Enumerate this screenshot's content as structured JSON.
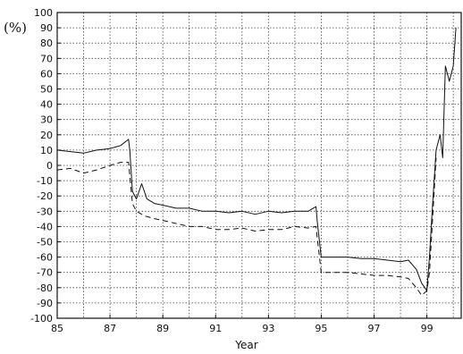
{
  "chart_data": {
    "type": "line",
    "xlabel": "Year",
    "ylabel": "(%)",
    "xlim": [
      85,
      100.3
    ],
    "ylim": [
      -100,
      100
    ],
    "x_ticks": [
      "85",
      "87",
      "89",
      "91",
      "93",
      "95",
      "97",
      "99"
    ],
    "y_ticks": [
      "100",
      "90",
      "80",
      "70",
      "60",
      "50",
      "40",
      "30",
      "20",
      "10",
      "0",
      "-10",
      "-20",
      "-30",
      "-40",
      "-50",
      "-60",
      "-70",
      "-80",
      "-90",
      "-100"
    ],
    "grid": true,
    "series": [
      {
        "style": "solid",
        "x": [
          85.0,
          85.5,
          86.0,
          86.5,
          87.0,
          87.4,
          87.7,
          87.75,
          87.85,
          88.0,
          88.2,
          88.4,
          88.7,
          89.0,
          89.5,
          90.0,
          90.5,
          91.0,
          91.5,
          92.0,
          92.5,
          93.0,
          93.5,
          94.0,
          94.5,
          94.8,
          94.85,
          95.0,
          95.5,
          96.0,
          96.5,
          97.0,
          97.5,
          98.0,
          98.3,
          98.6,
          98.8,
          99.0,
          99.1,
          99.2,
          99.35,
          99.5,
          99.6,
          99.7,
          99.85,
          100.0,
          100.1
        ],
        "y": [
          10,
          9,
          8,
          10,
          11,
          13,
          17,
          10,
          -17,
          -22,
          -12,
          -22,
          -25,
          -26,
          -28,
          -28,
          -30,
          -30,
          -31,
          -30,
          -32,
          -30,
          -31,
          -30,
          -30,
          -27,
          -37,
          -60,
          -60,
          -60,
          -61,
          -61,
          -62,
          -63,
          -62,
          -68,
          -77,
          -82,
          -60,
          -30,
          10,
          20,
          5,
          65,
          55,
          65,
          90
        ]
      },
      {
        "style": "dashed",
        "x": [
          85.0,
          85.5,
          86.0,
          86.5,
          87.0,
          87.4,
          87.7,
          87.85,
          88.0,
          88.3,
          88.7,
          89.0,
          89.5,
          90.0,
          90.5,
          91.0,
          91.5,
          92.0,
          92.5,
          93.0,
          93.5,
          94.0,
          94.5,
          94.8,
          95.0,
          95.5,
          96.0,
          96.5,
          97.0,
          97.5,
          98.0,
          98.3,
          98.6,
          98.8,
          99.0,
          99.1,
          99.2,
          99.35
        ],
        "y": [
          -3,
          -2,
          -5,
          -3,
          0,
          2,
          2,
          -25,
          -30,
          -33,
          -35,
          -36,
          -38,
          -40,
          -40,
          -42,
          -42,
          -41,
          -43,
          -42,
          -42,
          -40,
          -41,
          -40,
          -70,
          -70,
          -70,
          -71,
          -72,
          -72,
          -73,
          -74,
          -80,
          -85,
          -82,
          -70,
          -40,
          5
        ]
      }
    ]
  }
}
